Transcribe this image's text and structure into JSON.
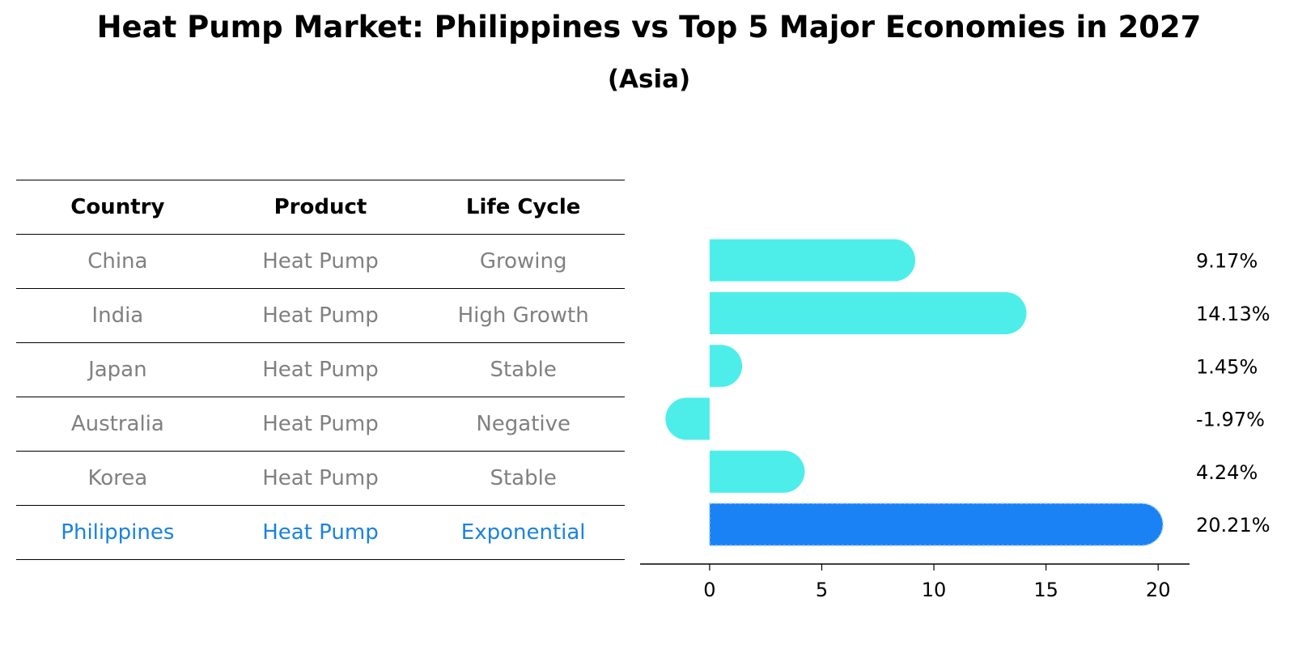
{
  "colors": {
    "bar": "#4deeea",
    "highlight_bar": "#1a82f5",
    "highlight_text": "#1a82e0",
    "muted_text": "#808080"
  },
  "chart_title": "Heat Pump Market: Philippines vs Top 5 Major Economies in 2027",
  "chart_subtitle": "(Asia)",
  "table": {
    "headers": [
      "Country",
      "Product",
      "Life Cycle"
    ],
    "rows": [
      {
        "country": "China",
        "product": "Heat Pump",
        "life_cycle": "Growing"
      },
      {
        "country": "India",
        "product": "Heat Pump",
        "life_cycle": "High Growth"
      },
      {
        "country": "Japan",
        "product": "Heat Pump",
        "life_cycle": "Stable"
      },
      {
        "country": "Australia",
        "product": "Heat Pump",
        "life_cycle": "Negative"
      },
      {
        "country": "Korea",
        "product": "Heat Pump",
        "life_cycle": "Stable"
      },
      {
        "country": "Philippines",
        "product": "Heat Pump",
        "life_cycle": "Exponential"
      }
    ]
  },
  "chart_data": {
    "type": "bar",
    "orientation": "horizontal",
    "title": "Heat Pump Market: Philippines vs Top 5 Major Economies in 2027",
    "subtitle": "(Asia)",
    "categories": [
      "China",
      "India",
      "Japan",
      "Australia",
      "Korea",
      "Philippines"
    ],
    "values": [
      9.17,
      14.13,
      1.45,
      -1.97,
      4.24,
      20.21
    ],
    "value_labels": [
      "9.17%",
      "14.13%",
      "1.45%",
      "-1.97%",
      "4.24%",
      "20.21%"
    ],
    "highlight": "Philippines",
    "xlabel": "",
    "ylabel": "",
    "xticks": [
      0,
      5,
      10,
      15,
      20
    ],
    "xlim": [
      -3.1,
      21.4
    ],
    "grid": false
  }
}
